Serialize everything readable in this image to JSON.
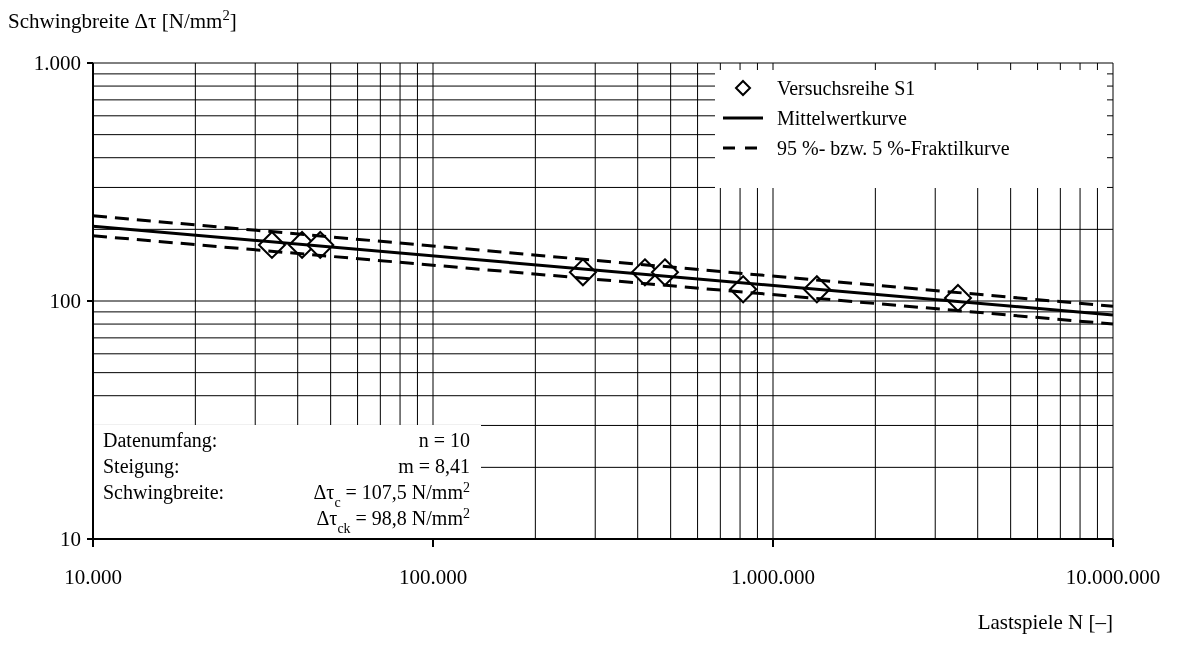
{
  "chart_data": {
    "type": "line",
    "xlabel": "Lastspiele N [–]",
    "ylabel": "Schwingbreite Δτ [N/mm$^{2}$]",
    "log": "xy",
    "grid": true,
    "legend": "top right",
    "xlim": [
      10000,
      10000000
    ],
    "xticks": [
      {
        "value": 10000,
        "label": "10.000"
      },
      {
        "value": 100000,
        "label": "100.000"
      },
      {
        "value": 1000000,
        "label": "1.000.000"
      },
      {
        "value": 10000000,
        "label": "10.000.000"
      }
    ],
    "ylim": [
      10,
      1000
    ],
    "yticks": [
      10,
      100,
      {
        "value": 1000,
        "label": "1.000"
      }
    ],
    "series": [
      {
        "name": "Versuchsreihe S1",
        "type": "scatter",
        "marker": "diamond",
        "color": "#000000",
        "x": [
          33600,
          41200,
          46600,
          276000,
          420000,
          481000,
          817000,
          1346000,
          3500000
        ],
        "values": [
          172,
          172,
          172,
          132,
          132,
          132,
          112,
          112,
          103
        ]
      },
      {
        "name": "Mittelwertkurve",
        "line_style": "solid",
        "color": "#000000",
        "x": [
          10000,
          10000000
        ],
        "values": [
          206,
          87.3
        ]
      },
      {
        "name": "95 %- bzw. 5 %-Fraktilkurve",
        "line_style": "dashed",
        "color": "#000000",
        "x": [
          10000,
          10000000
        ],
        "values": [
          228,
          95
        ]
      },
      {
        "line_style": "dashed",
        "color": "#000000",
        "x": [
          10000,
          10000000
        ],
        "values": [
          188,
          80
        ]
      }
    ],
    "annotations": [
      "Datenumfang:",
      "n = 10",
      "Steigung:",
      "m = 8,41",
      "Schwingbreite:",
      "Δτ$_{c}$ = 107,5 N/mm$^{2}$",
      "Δτ$_{ck}$ = 98,8 N/mm$^{2}$"
    ]
  }
}
